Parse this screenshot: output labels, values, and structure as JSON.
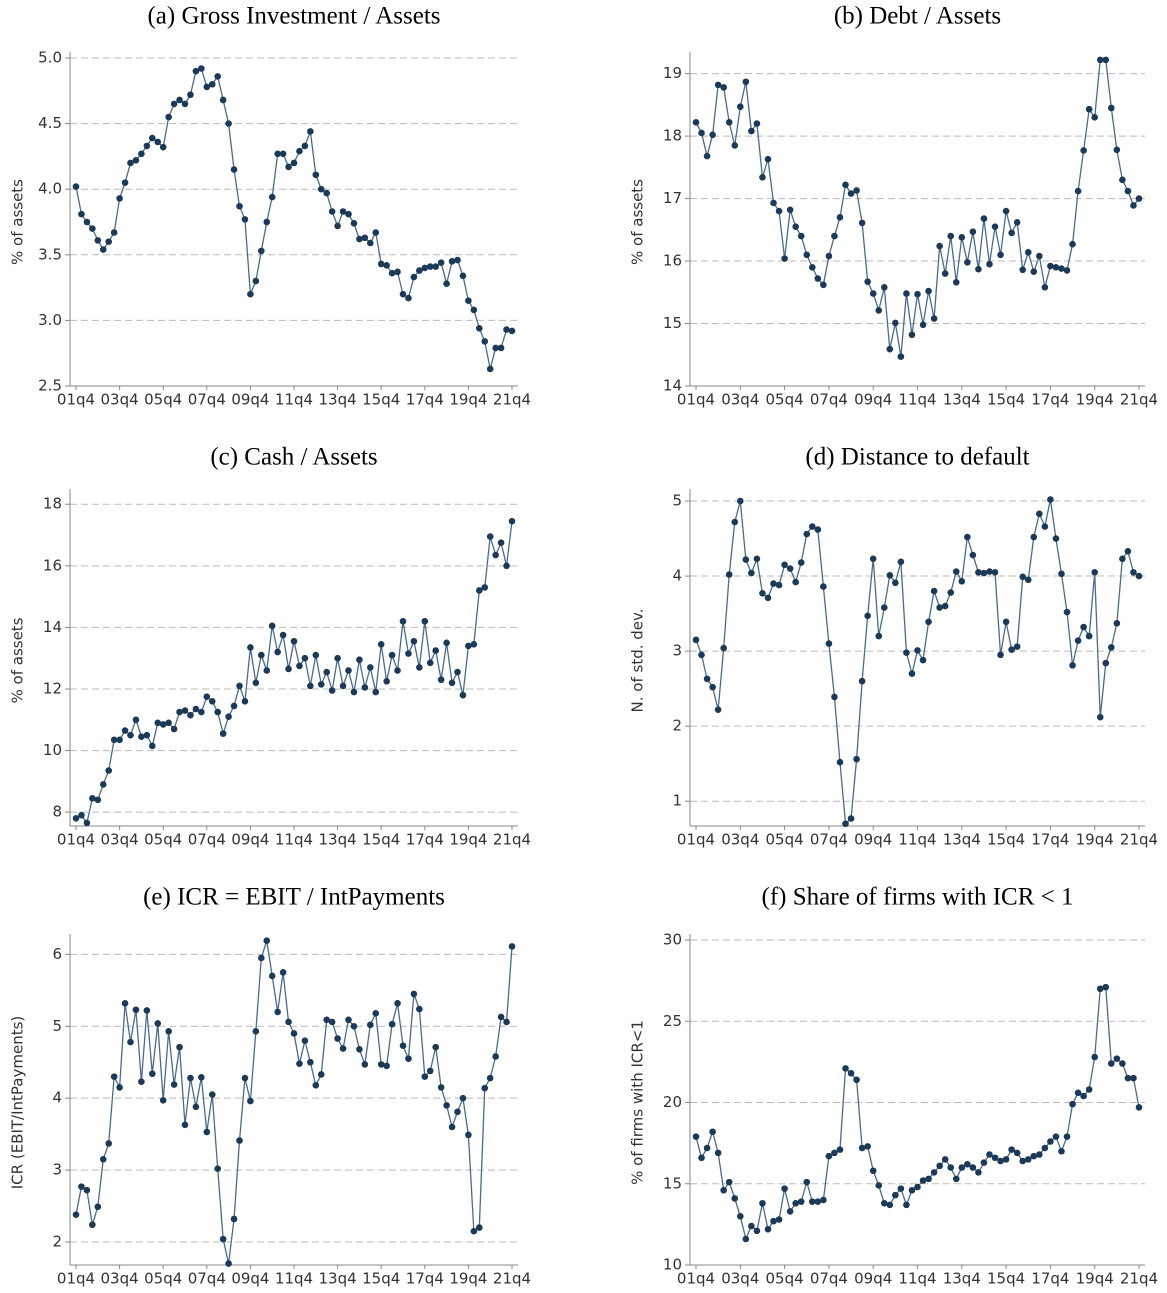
{
  "chart_data": [
    {
      "type": "line",
      "title": "(a) Gross Investment / Assets",
      "y_label": "% of assets",
      "color": "#4a6b8a",
      "marker_color": "#1c3a57",
      "categories": [
        "01q4",
        null,
        null,
        null,
        null,
        null,
        null,
        null,
        "03q4",
        null,
        null,
        null,
        null,
        null,
        null,
        null,
        "05q4",
        null,
        null,
        null,
        null,
        null,
        null,
        null,
        "07q4",
        null,
        null,
        null,
        null,
        null,
        null,
        null,
        "09q4",
        null,
        null,
        null,
        null,
        null,
        null,
        null,
        "11q4",
        null,
        null,
        null,
        null,
        null,
        null,
        null,
        "13q4",
        null,
        null,
        null,
        null,
        null,
        null,
        null,
        "15q4",
        null,
        null,
        null,
        null,
        null,
        null,
        null,
        "17q4",
        null,
        null,
        null,
        null,
        null,
        null,
        null,
        "19q4",
        null,
        null,
        null,
        null,
        null,
        null,
        null,
        "21q4"
      ],
      "values": [
        4.02,
        3.81,
        3.75,
        3.7,
        3.61,
        3.54,
        3.6,
        3.67,
        3.93,
        4.05,
        4.2,
        4.22,
        4.27,
        4.33,
        4.39,
        4.36,
        4.32,
        4.55,
        4.65,
        4.68,
        4.65,
        4.72,
        4.9,
        4.92,
        4.78,
        4.8,
        4.86,
        4.68,
        4.5,
        4.15,
        3.87,
        3.77,
        3.2,
        3.3,
        3.53,
        3.75,
        3.94,
        4.27,
        4.27,
        4.17,
        4.2,
        4.29,
        4.33,
        4.44,
        4.11,
        4.0,
        3.97,
        3.83,
        3.72,
        3.83,
        3.81,
        3.74,
        3.62,
        3.63,
        3.59,
        3.67,
        3.43,
        3.42,
        3.36,
        3.37,
        3.2,
        3.17,
        3.33,
        3.38,
        3.4,
        3.41,
        3.41,
        3.44,
        3.28,
        3.45,
        3.46,
        3.34,
        3.15,
        3.08,
        2.94,
        2.84,
        2.63,
        2.79,
        2.79,
        2.93,
        2.92
      ],
      "ylim": [
        2.5,
        5.0
      ],
      "yticks": [
        2.5,
        {
          "value": 3,
          "label": "3.0"
        },
        3.5,
        {
          "value": 4,
          "label": "4.0"
        },
        4.5,
        {
          "value": 5,
          "label": "5.0"
        }
      ],
      "grid": true
    },
    {
      "type": "line",
      "title": "(b) Debt / Assets",
      "y_label": "% of assets",
      "color": "#4a6b8a",
      "marker_color": "#1c3a57",
      "categories": [
        "01q4",
        null,
        null,
        null,
        null,
        null,
        null,
        null,
        "03q4",
        null,
        null,
        null,
        null,
        null,
        null,
        null,
        "05q4",
        null,
        null,
        null,
        null,
        null,
        null,
        null,
        "07q4",
        null,
        null,
        null,
        null,
        null,
        null,
        null,
        "09q4",
        null,
        null,
        null,
        null,
        null,
        null,
        null,
        "11q4",
        null,
        null,
        null,
        null,
        null,
        null,
        null,
        "13q4",
        null,
        null,
        null,
        null,
        null,
        null,
        null,
        "15q4",
        null,
        null,
        null,
        null,
        null,
        null,
        null,
        "17q4",
        null,
        null,
        null,
        null,
        null,
        null,
        null,
        "19q4",
        null,
        null,
        null,
        null,
        null,
        null,
        null,
        "21q4"
      ],
      "values": [
        18.22,
        18.05,
        17.68,
        18.02,
        18.82,
        18.78,
        18.22,
        17.85,
        18.47,
        18.87,
        18.08,
        18.2,
        17.34,
        17.63,
        16.93,
        16.8,
        16.04,
        16.82,
        16.55,
        16.4,
        16.1,
        15.9,
        15.72,
        15.62,
        16.08,
        16.4,
        16.7,
        17.22,
        17.08,
        17.13,
        16.61,
        15.67,
        15.48,
        15.21,
        15.58,
        14.59,
        15.01,
        14.47,
        15.48,
        14.82,
        15.47,
        14.98,
        15.52,
        15.08,
        16.24,
        15.8,
        16.4,
        15.66,
        16.38,
        15.98,
        16.47,
        15.87,
        16.68,
        15.95,
        16.55,
        16.1,
        16.8,
        16.45,
        16.62,
        15.86,
        16.14,
        15.83,
        16.08,
        15.58,
        15.92,
        15.9,
        15.88,
        15.85,
        16.27,
        17.12,
        17.77,
        18.43,
        18.3,
        19.22,
        19.22,
        18.45,
        17.78,
        17.3,
        17.12,
        16.89,
        17.0
      ],
      "ylim": [
        14,
        19.25
      ],
      "yticks": [
        14,
        15,
        16,
        17,
        18,
        19
      ],
      "grid": true
    },
    {
      "type": "line",
      "title": "(c) Cash / Assets",
      "y_label": "% of assets",
      "color": "#4a6b8a",
      "marker_color": "#1c3a57",
      "categories": [
        "01q4",
        null,
        null,
        null,
        null,
        null,
        null,
        null,
        "03q4",
        null,
        null,
        null,
        null,
        null,
        null,
        null,
        "05q4",
        null,
        null,
        null,
        null,
        null,
        null,
        null,
        "07q4",
        null,
        null,
        null,
        null,
        null,
        null,
        null,
        "09q4",
        null,
        null,
        null,
        null,
        null,
        null,
        null,
        "11q4",
        null,
        null,
        null,
        null,
        null,
        null,
        null,
        "13q4",
        null,
        null,
        null,
        null,
        null,
        null,
        null,
        "15q4",
        null,
        null,
        null,
        null,
        null,
        null,
        null,
        "17q4",
        null,
        null,
        null,
        null,
        null,
        null,
        null,
        "19q4",
        null,
        null,
        null,
        null,
        null,
        null,
        null,
        "21q4"
      ],
      "values": [
        7.8,
        7.9,
        7.65,
        8.45,
        8.4,
        8.9,
        9.35,
        10.35,
        10.35,
        10.65,
        10.5,
        11.0,
        10.45,
        10.5,
        10.15,
        10.9,
        10.85,
        10.9,
        10.7,
        11.25,
        11.3,
        11.15,
        11.35,
        11.25,
        11.75,
        11.6,
        11.25,
        10.55,
        11.1,
        11.45,
        12.1,
        11.6,
        13.35,
        12.2,
        13.1,
        12.6,
        14.05,
        13.2,
        13.75,
        12.65,
        13.55,
        12.75,
        13.0,
        12.1,
        13.1,
        12.15,
        12.55,
        11.95,
        13.0,
        12.1,
        12.6,
        11.9,
        12.95,
        12.05,
        12.7,
        11.9,
        13.45,
        12.25,
        13.1,
        12.6,
        14.2,
        13.15,
        13.55,
        12.7,
        14.2,
        12.85,
        13.25,
        12.3,
        13.5,
        12.2,
        12.55,
        11.8,
        13.4,
        13.45,
        15.2,
        15.3,
        16.95,
        16.35,
        16.75,
        16.0,
        17.45
      ],
      "ylim": [
        7.55,
        18.3
      ],
      "yticks": [
        8,
        10,
        12,
        14,
        16,
        18
      ],
      "grid": true
    },
    {
      "type": "line",
      "title": "(d) Distance to default",
      "y_label": "N. of std. dev.",
      "color": "#4a6b8a",
      "marker_color": "#1c3a57",
      "categories": [
        "01q4",
        null,
        null,
        null,
        null,
        null,
        null,
        null,
        "03q4",
        null,
        null,
        null,
        null,
        null,
        null,
        null,
        "05q4",
        null,
        null,
        null,
        null,
        null,
        null,
        null,
        "07q4",
        null,
        null,
        null,
        null,
        null,
        null,
        null,
        "09q4",
        null,
        null,
        null,
        null,
        null,
        null,
        null,
        "11q4",
        null,
        null,
        null,
        null,
        null,
        null,
        null,
        "13q4",
        null,
        null,
        null,
        null,
        null,
        null,
        null,
        "15q4",
        null,
        null,
        null,
        null,
        null,
        null,
        null,
        "17q4",
        null,
        null,
        null,
        null,
        null,
        null,
        null,
        "19q4",
        null,
        null,
        null,
        null,
        null,
        null,
        null,
        "21q4"
      ],
      "values": [
        3.15,
        2.95,
        2.63,
        2.52,
        2.22,
        3.04,
        4.02,
        4.72,
        5.0,
        4.22,
        4.04,
        4.23,
        3.77,
        3.71,
        3.9,
        3.88,
        4.15,
        4.1,
        3.92,
        4.18,
        4.56,
        4.66,
        4.62,
        3.86,
        3.1,
        2.39,
        1.52,
        0.7,
        0.77,
        1.56,
        2.6,
        3.47,
        4.23,
        3.2,
        3.58,
        4.01,
        3.91,
        4.19,
        2.98,
        2.7,
        3.01,
        2.88,
        3.39,
        3.8,
        3.58,
        3.6,
        3.78,
        4.06,
        3.93,
        4.52,
        4.28,
        4.05,
        4.04,
        4.06,
        4.05,
        2.95,
        3.39,
        3.02,
        3.06,
        3.99,
        3.95,
        4.52,
        4.83,
        4.66,
        5.02,
        4.5,
        4.03,
        3.52,
        2.81,
        3.14,
        3.32,
        3.2,
        4.05,
        2.12,
        2.84,
        3.05,
        3.37,
        4.23,
        4.33,
        4.05,
        4.0
      ],
      "ylim": [
        0.67,
        5.08
      ],
      "yticks": [
        1,
        2,
        3,
        4,
        5
      ],
      "grid": true
    },
    {
      "type": "line",
      "title": "(e) ICR = EBIT / IntPayments",
      "y_label": "ICR (EBIT/IntPayments)",
      "color": "#4a6b8a",
      "marker_color": "#1c3a57",
      "categories": [
        "01q4",
        null,
        null,
        null,
        null,
        null,
        null,
        null,
        "03q4",
        null,
        null,
        null,
        null,
        null,
        null,
        null,
        "05q4",
        null,
        null,
        null,
        null,
        null,
        null,
        null,
        "07q4",
        null,
        null,
        null,
        null,
        null,
        null,
        null,
        "09q4",
        null,
        null,
        null,
        null,
        null,
        null,
        null,
        "11q4",
        null,
        null,
        null,
        null,
        null,
        null,
        null,
        "13q4",
        null,
        null,
        null,
        null,
        null,
        null,
        null,
        "15q4",
        null,
        null,
        null,
        null,
        null,
        null,
        null,
        "17q4",
        null,
        null,
        null,
        null,
        null,
        null,
        null,
        "19q4",
        null,
        null,
        null,
        null,
        null,
        null,
        null,
        "21q4"
      ],
      "values": [
        2.38,
        2.77,
        2.72,
        2.24,
        2.49,
        3.15,
        3.37,
        4.3,
        4.15,
        5.32,
        4.78,
        5.23,
        4.23,
        5.22,
        4.34,
        5.04,
        3.97,
        4.93,
        4.19,
        4.71,
        3.63,
        4.28,
        3.88,
        4.29,
        3.53,
        4.05,
        3.02,
        2.04,
        1.7,
        2.32,
        3.41,
        4.28,
        3.96,
        4.93,
        5.95,
        6.19,
        5.7,
        5.2,
        5.75,
        5.06,
        4.9,
        4.48,
        4.8,
        4.5,
        4.18,
        4.33,
        5.09,
        5.06,
        4.83,
        4.69,
        5.09,
        5.0,
        4.68,
        4.47,
        5.02,
        5.18,
        4.47,
        4.45,
        5.03,
        5.32,
        4.73,
        4.55,
        5.45,
        5.24,
        4.3,
        4.38,
        4.71,
        4.15,
        3.9,
        3.6,
        3.81,
        4.0,
        3.49,
        2.15,
        2.2,
        4.14,
        4.28,
        4.58,
        5.13,
        5.06,
        6.11
      ],
      "ylim": [
        1.68,
        6.2
      ],
      "yticks": [
        2,
        3,
        4,
        5,
        6
      ],
      "grid": true
    },
    {
      "type": "line",
      "title": "(f) Share of firms with ICR < 1",
      "y_label": "% of firms with ICR<1",
      "color": "#4a6b8a",
      "marker_color": "#1c3a57",
      "categories": [
        "01q4",
        null,
        null,
        null,
        null,
        null,
        null,
        null,
        "03q4",
        null,
        null,
        null,
        null,
        null,
        null,
        null,
        "05q4",
        null,
        null,
        null,
        null,
        null,
        null,
        null,
        "07q4",
        null,
        null,
        null,
        null,
        null,
        null,
        null,
        "09q4",
        null,
        null,
        null,
        null,
        null,
        null,
        null,
        "11q4",
        null,
        null,
        null,
        null,
        null,
        null,
        null,
        "13q4",
        null,
        null,
        null,
        null,
        null,
        null,
        null,
        "15q4",
        null,
        null,
        null,
        null,
        null,
        null,
        null,
        "17q4",
        null,
        null,
        null,
        null,
        null,
        null,
        null,
        "19q4",
        null,
        null,
        null,
        null,
        null,
        null,
        null,
        "21q4"
      ],
      "values": [
        17.9,
        16.6,
        17.2,
        18.2,
        16.9,
        14.6,
        15.1,
        14.1,
        13.0,
        11.6,
        12.4,
        12.1,
        13.8,
        12.2,
        12.7,
        12.8,
        14.7,
        13.3,
        13.8,
        13.9,
        15.1,
        13.9,
        13.9,
        14.0,
        16.7,
        16.9,
        17.1,
        22.1,
        21.8,
        21.4,
        17.2,
        17.3,
        15.8,
        14.9,
        13.8,
        13.7,
        14.3,
        14.7,
        13.7,
        14.6,
        14.8,
        15.2,
        15.3,
        15.7,
        16.1,
        16.5,
        16.0,
        15.3,
        16.0,
        16.2,
        16.0,
        15.7,
        16.3,
        16.8,
        16.6,
        16.4,
        16.5,
        17.1,
        16.9,
        16.4,
        16.5,
        16.7,
        16.8,
        17.2,
        17.6,
        17.9,
        17.0,
        17.9,
        19.9,
        20.6,
        20.4,
        20.8,
        22.8,
        27.0,
        27.1,
        22.4,
        22.7,
        22.4,
        21.5,
        21.5,
        19.7
      ],
      "ylim": [
        10,
        30
      ],
      "yticks": [
        10,
        15,
        20,
        25,
        30
      ],
      "grid": true
    }
  ]
}
